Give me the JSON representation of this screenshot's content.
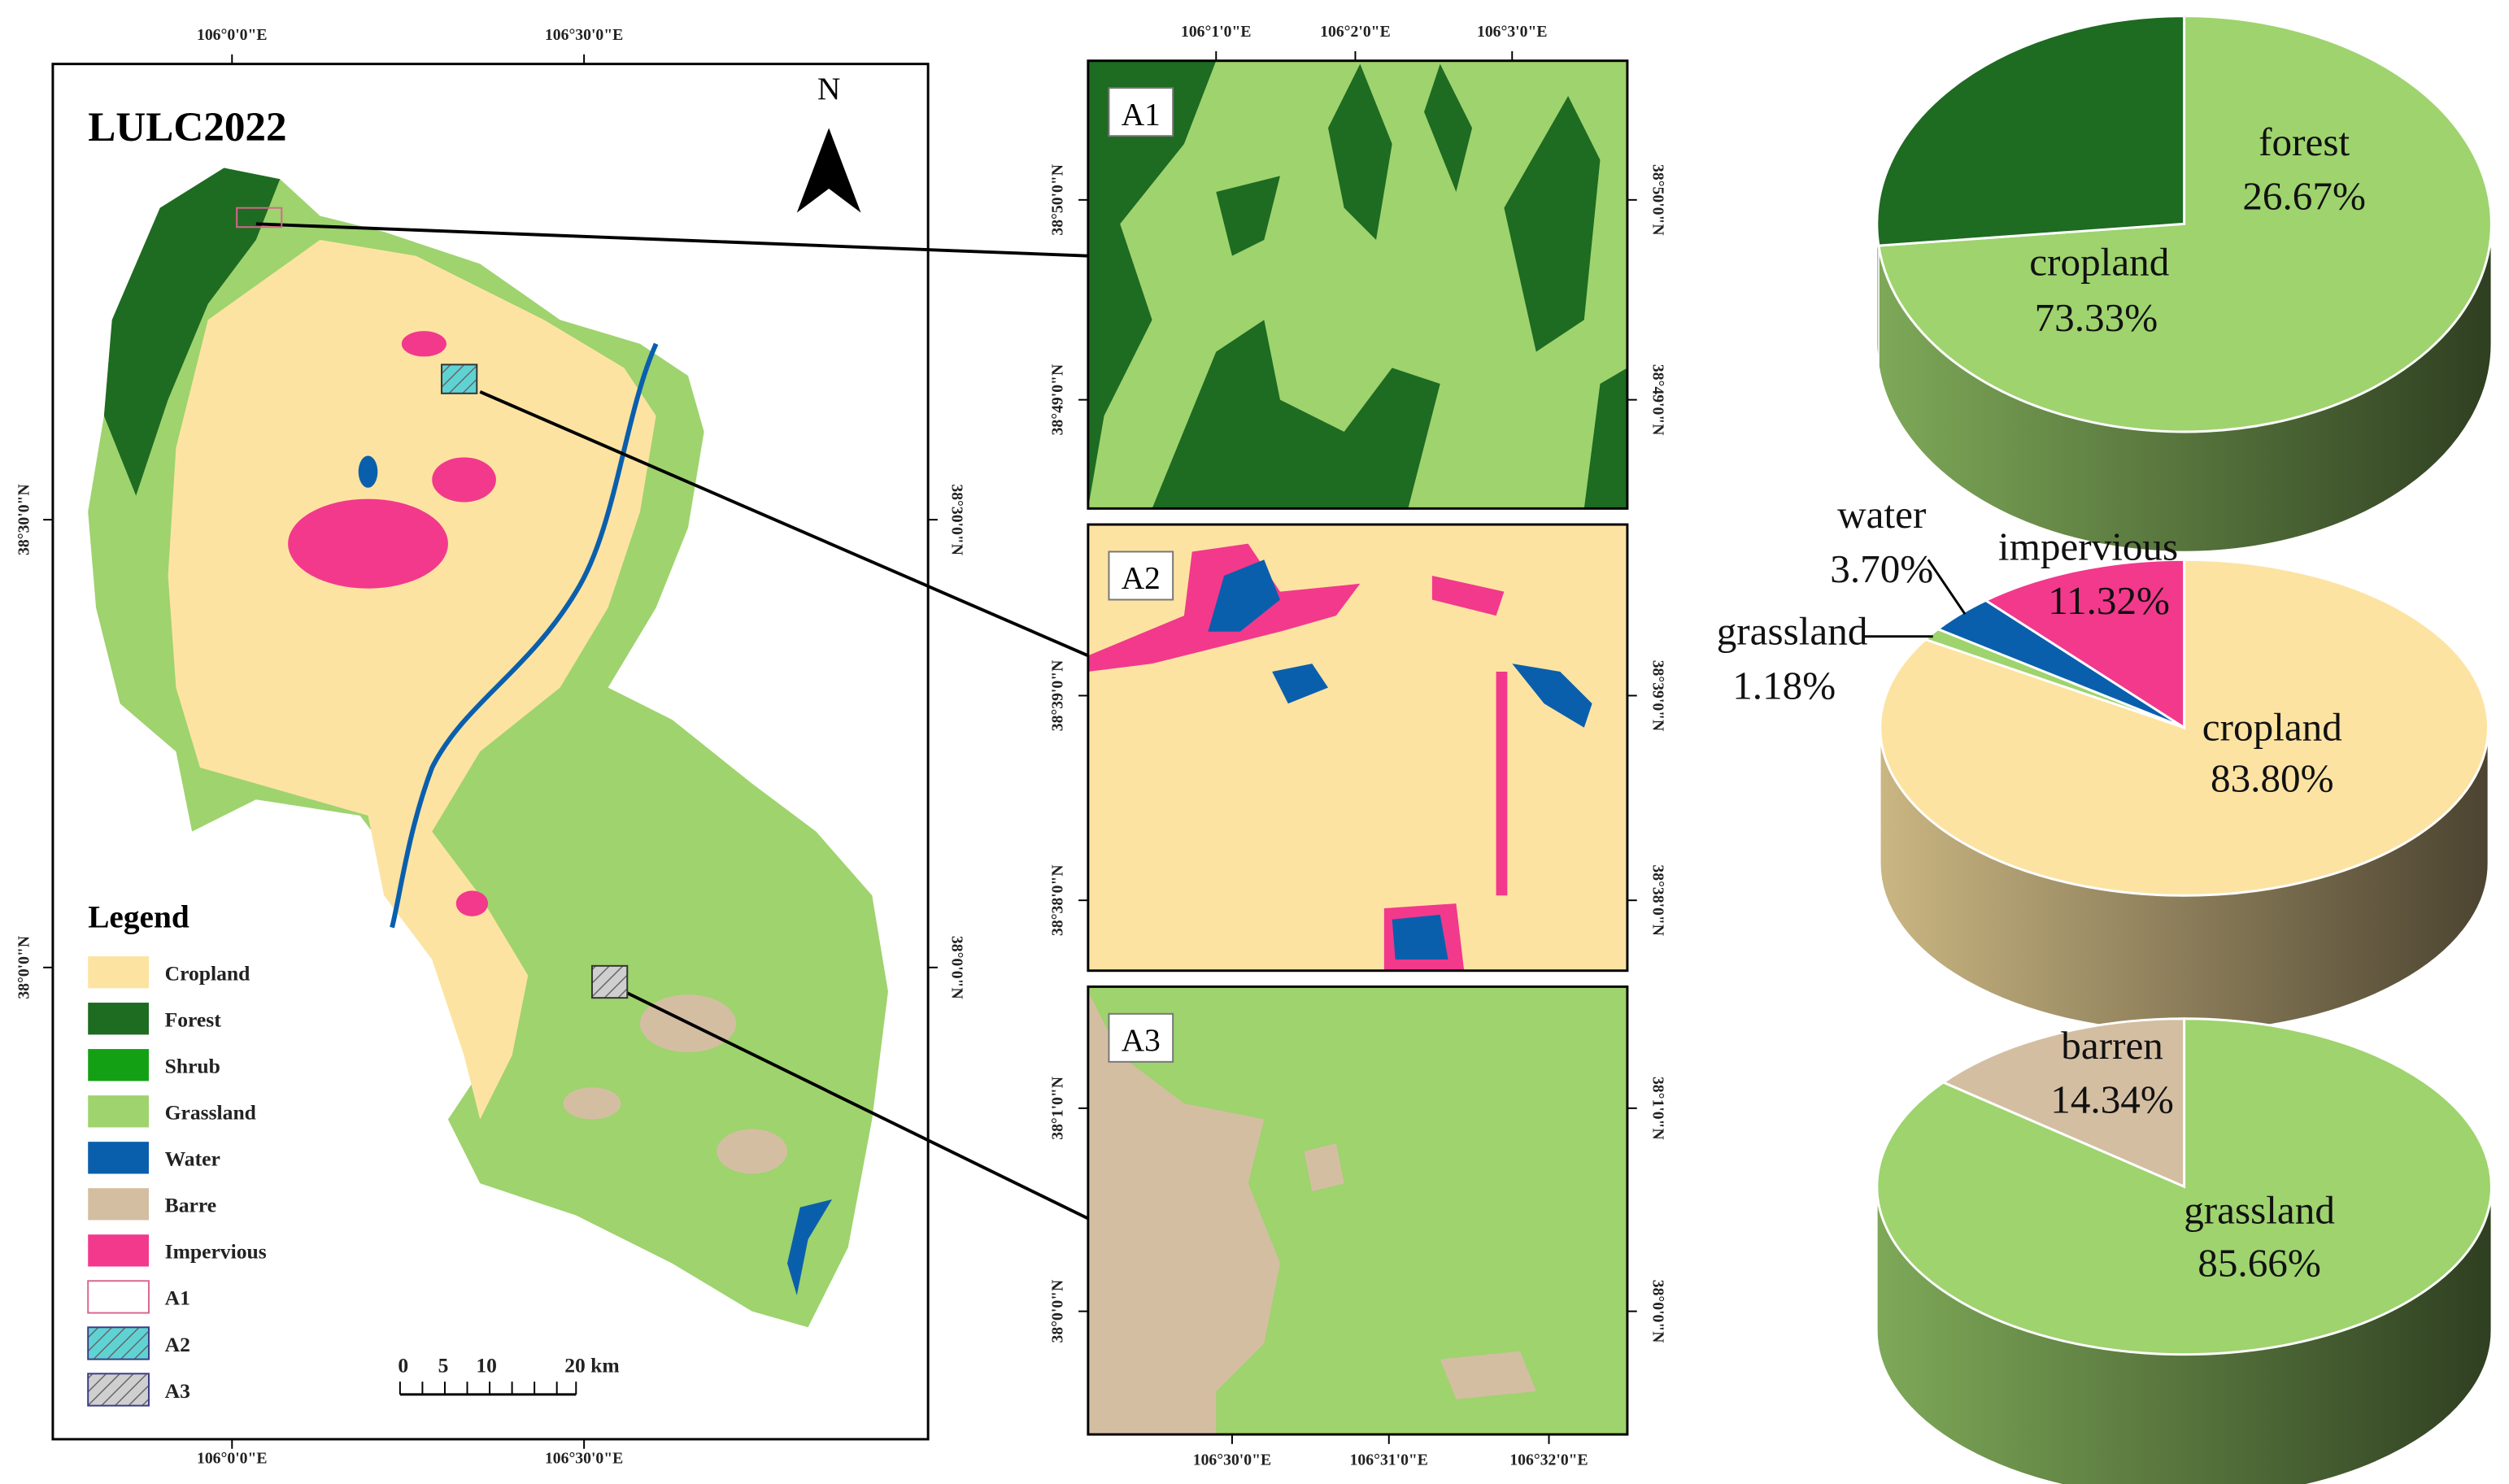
{
  "map": {
    "title": "LULC2022",
    "north": "N",
    "legend_title": "Legend",
    "legend": [
      {
        "label": "Cropland",
        "color": "#fde3a2"
      },
      {
        "label": "Forest",
        "color": "#1e6b22"
      },
      {
        "label": "Shrub",
        "color": "#14a014"
      },
      {
        "label": "Grassland",
        "color": "#9ed36e"
      },
      {
        "label": "Water",
        "color": "#0a5fad"
      },
      {
        "label": "Barre",
        "color": "#d4bea2"
      },
      {
        "label": "Impervious",
        "color": "#f2398c"
      },
      {
        "label": "A1",
        "color": "#ffffff",
        "border": "#d9668f"
      },
      {
        "label": "A2",
        "color": "#5fd3d3",
        "hatch": true
      },
      {
        "label": "A3",
        "color": "#cfcfcf",
        "hatch": true
      }
    ],
    "scale_bar": [
      "0",
      "5",
      "10",
      "20 km"
    ],
    "lon_labels": [
      "106°0'0\"E",
      "106°30'0\"E"
    ],
    "lat_labels": [
      "38°30'0\"N",
      "38°0'0\"N"
    ]
  },
  "insets": [
    {
      "label": "A1",
      "lon_labels": [
        "106°1'0\"E",
        "106°2'0\"E",
        "106°3'0\"E"
      ],
      "lat_labels": [
        "38°50'0\"N",
        "38°49'0\"N"
      ]
    },
    {
      "label": "A2",
      "lat_labels": [
        "38°39'0\"N",
        "38°38'0\"N"
      ]
    },
    {
      "label": "A3",
      "lon_labels": [
        "106°30'0\"E",
        "106°31'0\"E",
        "106°32'0\"E"
      ],
      "lat_labels": [
        "38°1'0\"N",
        "38°0'0\"N"
      ]
    }
  ],
  "chart_data": [
    {
      "type": "pie3d",
      "categories": [
        "cropland",
        "forest"
      ],
      "values": [
        73.33,
        26.67
      ],
      "value_labels": [
        "73.33%",
        "26.67%"
      ],
      "colors": [
        "#9ed36e",
        "#1e6b22"
      ]
    },
    {
      "type": "pie3d",
      "categories": [
        "cropland",
        "grassland",
        "water",
        "impervious"
      ],
      "values": [
        83.8,
        1.18,
        3.7,
        11.32
      ],
      "value_labels": [
        "83.80%",
        "1.18%",
        "3.70%",
        "11.32%"
      ],
      "colors": [
        "#fde3a2",
        "#9ed36e",
        "#0a5fad",
        "#f2398c"
      ]
    },
    {
      "type": "pie3d",
      "categories": [
        "grassland",
        "barren"
      ],
      "values": [
        85.66,
        14.34
      ],
      "value_labels": [
        "85.66%",
        "14.34%"
      ],
      "colors": [
        "#9ed36e",
        "#d4bea2"
      ]
    }
  ]
}
